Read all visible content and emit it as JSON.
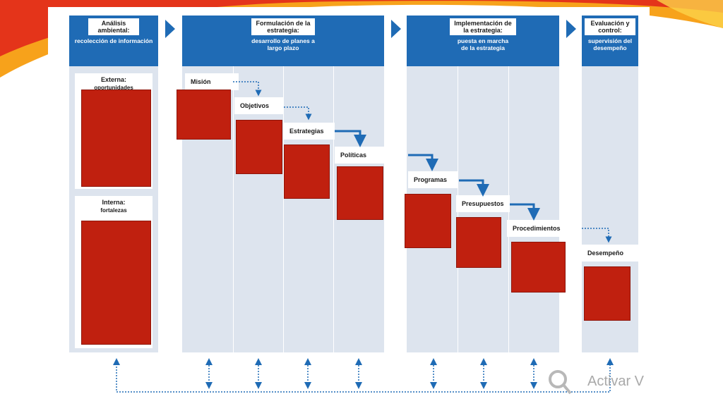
{
  "colors": {
    "header_blue": "#1f6bb5",
    "column_bg": "#dde4ee",
    "redaction": "#c0200f",
    "arrow_blue": "#1f6bb5",
    "swoosh_red": "#e4341a",
    "swoosh_orange": "#f7a21b"
  },
  "headers": {
    "analisis": {
      "title": "Análisis ambiental:",
      "sub": "recolección de información"
    },
    "formulacion": {
      "title": "Formulación de la estrategia:",
      "sub": "desarrollo de planes a largo plazo"
    },
    "implementacion": {
      "title": "Implementación de la estrategia:",
      "sub": "puesta en marcha de la estrategia"
    },
    "evaluacion": {
      "title": "Evaluación y control:",
      "sub": "supervisión del desempeño"
    }
  },
  "analysis_boxes": {
    "externa": {
      "label": "Externa:",
      "sub": "oportunidades"
    },
    "interna": {
      "label": "Interna:",
      "sub": "fortalezas"
    }
  },
  "steps": {
    "mision": "Misión",
    "objetivos": "Objetivos",
    "estrategias": "Estrategias",
    "politicas": "Políticas",
    "programas": "Programas",
    "presupuestos": "Presupuestos",
    "procedimientos": "Procedimientos",
    "desempeno": "Desempeño"
  },
  "watermark": "Activar V"
}
